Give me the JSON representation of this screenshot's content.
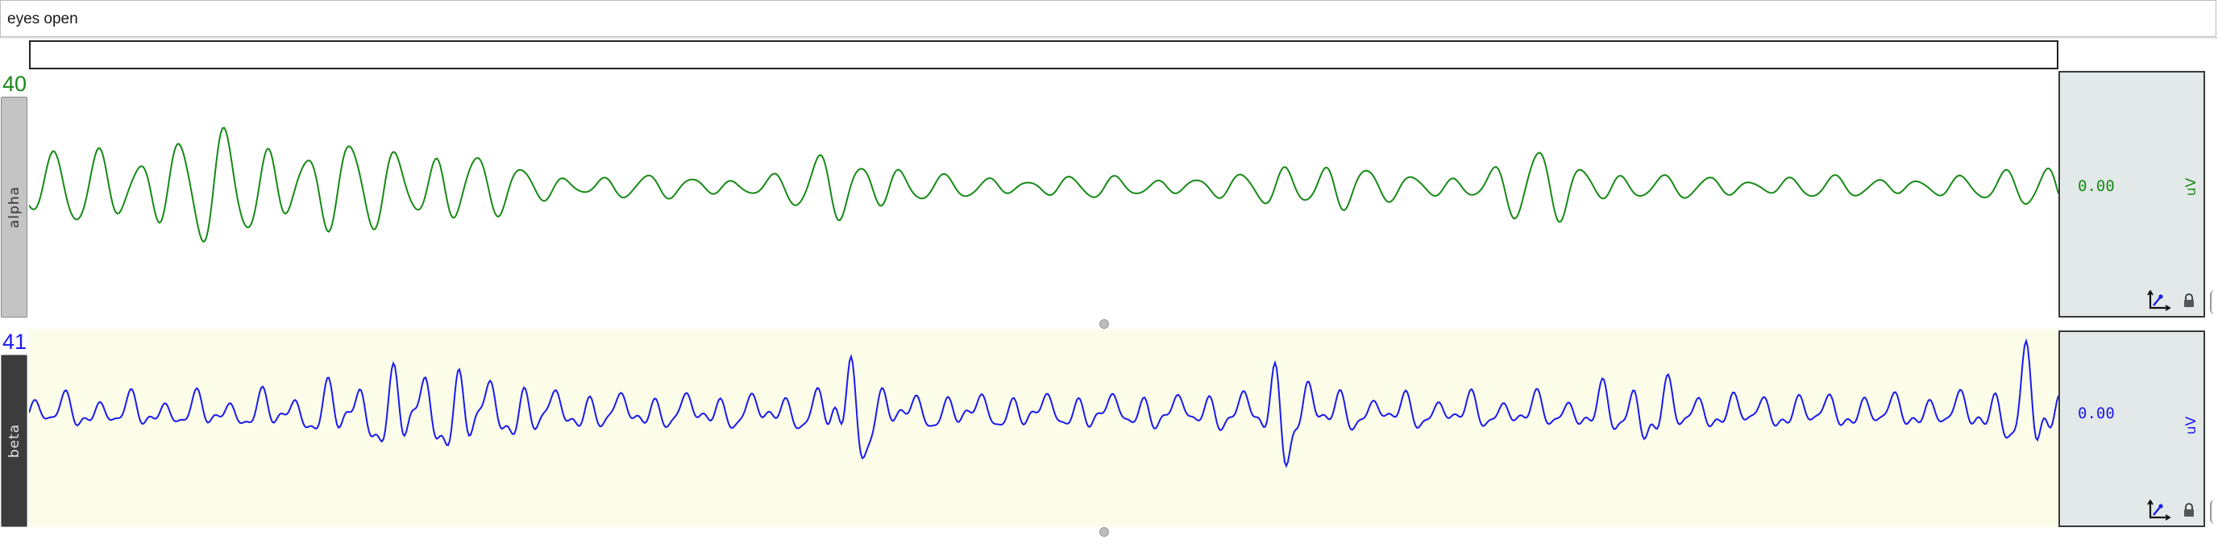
{
  "comment": {
    "text": "eyes open"
  },
  "channels": [
    {
      "number": "40",
      "label": "alpha",
      "value": "0.00",
      "unit": "uV",
      "color": "#168a16",
      "row_background": "#ffffff",
      "tab_background": "#c4c4c4",
      "tab_text_color": "#333333",
      "icons": [
        "axis-scale-icon",
        "lock-icon"
      ]
    },
    {
      "number": "41",
      "label": "beta",
      "value": "0.00",
      "unit": "uV",
      "color": "#1a1aee",
      "row_background": "#fbfde9",
      "tab_background": "#3c3c3c",
      "tab_text_color": "#e6e6e6",
      "icons": [
        "axis-scale-icon",
        "lock-icon"
      ]
    }
  ]
}
